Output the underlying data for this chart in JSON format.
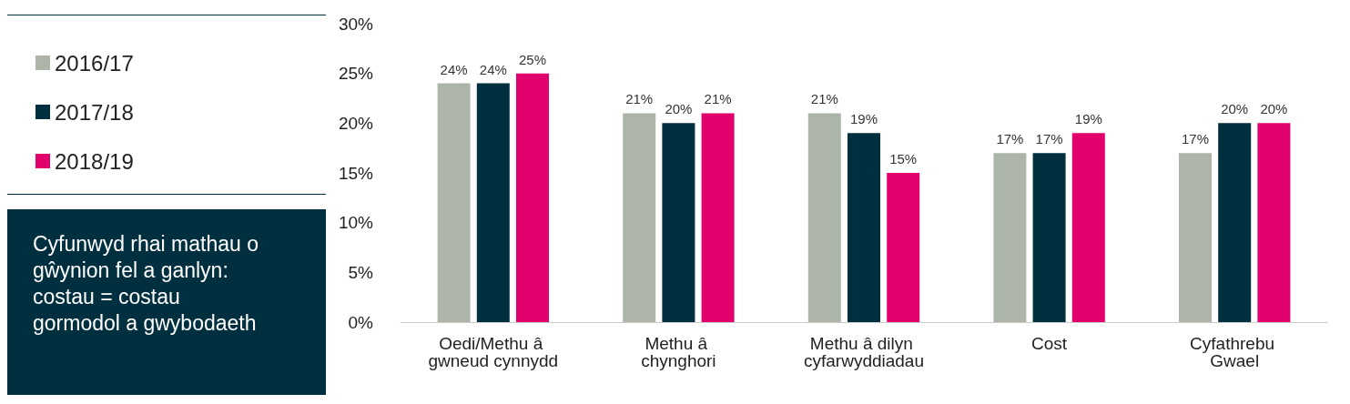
{
  "chart_data": {
    "type": "bar",
    "categories": [
      "Oedi/Methu â gwneud cynnydd",
      "Methu â chynghori",
      "Methu â dilyn cyfarwyddiadau",
      "Cost",
      "Cyfathrebu Gwael"
    ],
    "series": [
      {
        "name": "2016/17",
        "color": "#adb5a9",
        "values": [
          24,
          21,
          21,
          17,
          17
        ],
        "value_labels": [
          "24%",
          "21%",
          "21%",
          "17%",
          "17%"
        ]
      },
      {
        "name": "2017/18",
        "color": "#002f3f",
        "values": [
          24,
          20,
          19,
          17,
          20
        ],
        "value_labels": [
          "24%",
          "20%",
          "19%",
          "17%",
          "20%"
        ]
      },
      {
        "name": "2018/19",
        "color": "#e2006d",
        "values": [
          25,
          21,
          15,
          19,
          20
        ],
        "value_labels": [
          "25%",
          "21%",
          "15%",
          "19%",
          "20%"
        ]
      }
    ],
    "ylim": [
      0,
      30
    ],
    "yticks": [
      {
        "value": 0,
        "label": "0%"
      },
      {
        "value": 5,
        "label": "5%"
      },
      {
        "value": 10,
        "label": "10%"
      },
      {
        "value": 15,
        "label": "15%"
      },
      {
        "value": 20,
        "label": "20%"
      },
      {
        "value": 25,
        "label": "25%"
      },
      {
        "value": 30,
        "label": "30%"
      }
    ],
    "grid": false,
    "legend": "left",
    "annotations": [
      "Cyfunwyd rhai mathau o gŵynion fel a ganlyn: costau = costau gormodol a gwybodaeth"
    ]
  }
}
